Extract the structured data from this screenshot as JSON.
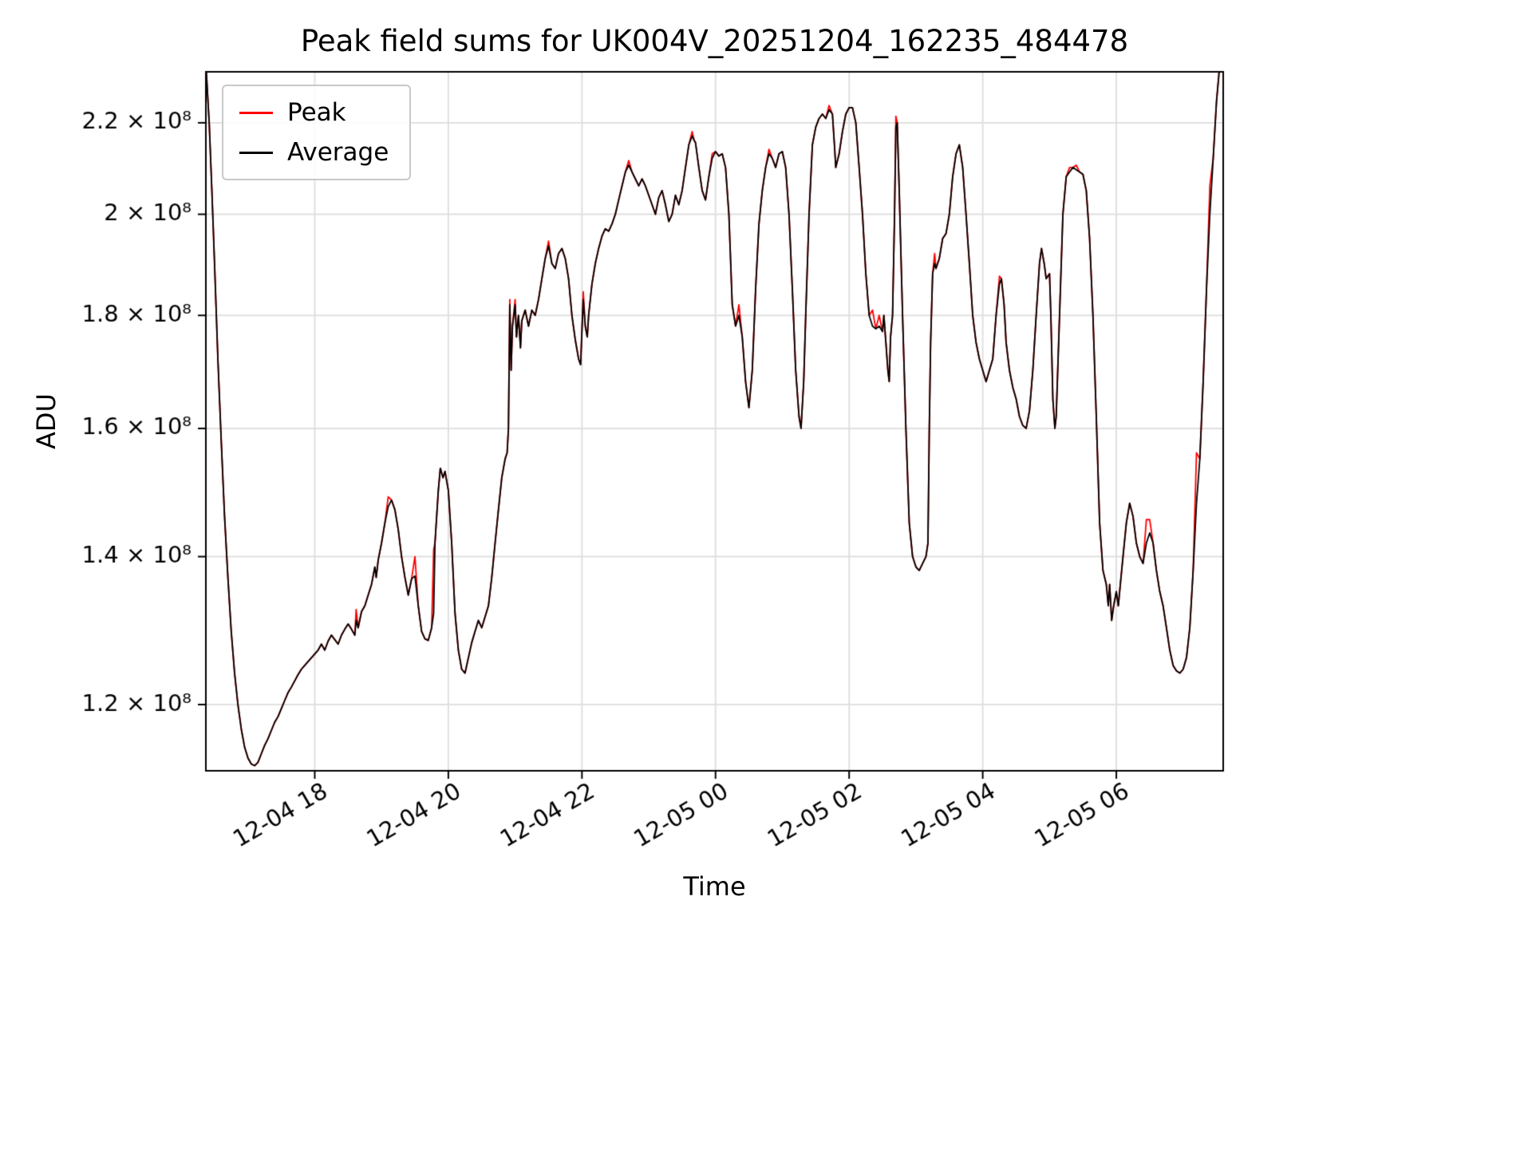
{
  "chart_data": {
    "type": "line",
    "title": "Peak field sums for UK004V_20251204_162235_484478",
    "xlabel": "Time",
    "ylabel": "ADU",
    "yscale": "log",
    "grid": true,
    "grid_color": "#e0e0e0",
    "legend_position": "upper-left",
    "ylim": [
      112000000,
      232000000
    ],
    "xlim_hours": [
      0.37,
      15.6
    ],
    "x_unit": "hours since 2025-12-04 16:00",
    "values_scale": 100000000,
    "xticks": {
      "positions": [
        2,
        4,
        6,
        8,
        10,
        12,
        14
      ],
      "labels": [
        "12-04 18",
        "12-04 20",
        "12-04 22",
        "12-05 00",
        "12-05 02",
        "12-05 04",
        "12-05 06"
      ]
    },
    "yticks": {
      "values": [
        120000000,
        140000000,
        160000000,
        180000000,
        200000000,
        220000000
      ],
      "labels": [
        "1.2 × 10⁸",
        "1.4 × 10⁸",
        "1.6 × 10⁸",
        "1.8 × 10⁸",
        "2 × 10⁸",
        "2.2 × 10⁸"
      ]
    },
    "x": [
      0.37,
      0.42,
      0.46,
      0.5,
      0.55,
      0.6,
      0.65,
      0.7,
      0.75,
      0.8,
      0.85,
      0.9,
      0.95,
      1.0,
      1.05,
      1.1,
      1.15,
      1.2,
      1.25,
      1.3,
      1.35,
      1.4,
      1.45,
      1.5,
      1.55,
      1.6,
      1.65,
      1.7,
      1.75,
      1.8,
      1.85,
      1.9,
      1.95,
      2.0,
      2.05,
      2.1,
      2.15,
      2.2,
      2.25,
      2.3,
      2.35,
      2.4,
      2.45,
      2.5,
      2.55,
      2.6,
      2.62,
      2.65,
      2.7,
      2.75,
      2.8,
      2.85,
      2.9,
      2.92,
      2.95,
      3.0,
      3.05,
      3.1,
      3.15,
      3.2,
      3.25,
      3.3,
      3.35,
      3.4,
      3.45,
      3.5,
      3.55,
      3.6,
      3.65,
      3.7,
      3.75,
      3.78,
      3.8,
      3.85,
      3.88,
      3.92,
      3.95,
      4.0,
      4.05,
      4.1,
      4.15,
      4.2,
      4.25,
      4.3,
      4.35,
      4.4,
      4.45,
      4.5,
      4.55,
      4.6,
      4.65,
      4.7,
      4.75,
      4.8,
      4.85,
      4.88,
      4.9,
      4.92,
      4.94,
      4.96,
      5.0,
      5.02,
      5.05,
      5.08,
      5.1,
      5.15,
      5.2,
      5.25,
      5.3,
      5.35,
      5.4,
      5.45,
      5.5,
      5.55,
      5.6,
      5.65,
      5.7,
      5.75,
      5.8,
      5.85,
      5.9,
      5.95,
      5.98,
      6.02,
      6.05,
      6.08,
      6.1,
      6.15,
      6.2,
      6.25,
      6.3,
      6.35,
      6.4,
      6.45,
      6.5,
      6.55,
      6.6,
      6.65,
      6.7,
      6.75,
      6.8,
      6.85,
      6.9,
      6.95,
      7.0,
      7.05,
      7.1,
      7.15,
      7.2,
      7.25,
      7.3,
      7.35,
      7.4,
      7.45,
      7.5,
      7.55,
      7.6,
      7.65,
      7.68,
      7.7,
      7.75,
      7.8,
      7.85,
      7.9,
      7.95,
      8.0,
      8.05,
      8.1,
      8.15,
      8.2,
      8.25,
      8.3,
      8.35,
      8.4,
      8.45,
      8.5,
      8.55,
      8.6,
      8.65,
      8.7,
      8.75,
      8.8,
      8.85,
      8.9,
      8.95,
      9.0,
      9.05,
      9.1,
      9.15,
      9.2,
      9.25,
      9.28,
      9.32,
      9.35,
      9.4,
      9.45,
      9.5,
      9.55,
      9.6,
      9.65,
      9.7,
      9.75,
      9.78,
      9.8,
      9.85,
      9.9,
      9.95,
      10.0,
      10.05,
      10.1,
      10.15,
      10.2,
      10.25,
      10.3,
      10.35,
      10.4,
      10.45,
      10.5,
      10.52,
      10.55,
      10.58,
      10.6,
      10.62,
      10.65,
      10.68,
      10.7,
      10.72,
      10.75,
      10.8,
      10.85,
      10.9,
      10.95,
      11.0,
      11.05,
      11.1,
      11.15,
      11.18,
      11.2,
      11.22,
      11.25,
      11.28,
      11.3,
      11.35,
      11.4,
      11.45,
      11.5,
      11.55,
      11.6,
      11.65,
      11.7,
      11.75,
      11.8,
      11.85,
      11.9,
      11.95,
      12.0,
      12.05,
      12.1,
      12.15,
      12.2,
      12.25,
      12.28,
      12.32,
      12.35,
      12.4,
      12.45,
      12.5,
      12.55,
      12.6,
      12.65,
      12.7,
      12.75,
      12.8,
      12.85,
      12.88,
      12.92,
      12.95,
      13.0,
      13.02,
      13.05,
      13.08,
      13.1,
      13.15,
      13.2,
      13.25,
      13.3,
      13.35,
      13.4,
      13.45,
      13.5,
      13.55,
      13.6,
      13.65,
      13.7,
      13.75,
      13.8,
      13.85,
      13.88,
      13.9,
      13.93,
      13.96,
      14.0,
      14.03,
      14.06,
      14.1,
      14.15,
      14.2,
      14.25,
      14.3,
      14.35,
      14.4,
      14.45,
      14.5,
      14.55,
      14.6,
      14.65,
      14.7,
      14.75,
      14.8,
      14.85,
      14.9,
      14.95,
      15.0,
      15.05,
      15.1,
      15.15,
      15.2,
      15.25,
      15.3,
      15.35,
      15.4,
      15.45,
      15.5,
      15.55,
      15.6
    ],
    "series": [
      {
        "name": "Peak",
        "color": "#ff0000",
        "values": [
          2.34,
          2.2,
          2.05,
          1.9,
          1.72,
          1.58,
          1.46,
          1.37,
          1.295,
          1.24,
          1.2,
          1.17,
          1.148,
          1.135,
          1.128,
          1.126,
          1.13,
          1.14,
          1.15,
          1.158,
          1.168,
          1.178,
          1.185,
          1.195,
          1.205,
          1.215,
          1.222,
          1.23,
          1.238,
          1.245,
          1.25,
          1.255,
          1.26,
          1.265,
          1.27,
          1.278,
          1.27,
          1.282,
          1.29,
          1.284,
          1.278,
          1.29,
          1.298,
          1.305,
          1.298,
          1.29,
          1.325,
          1.3,
          1.322,
          1.33,
          1.345,
          1.36,
          1.385,
          1.37,
          1.395,
          1.42,
          1.45,
          1.49,
          1.485,
          1.47,
          1.44,
          1.4,
          1.37,
          1.345,
          1.368,
          1.4,
          1.33,
          1.295,
          1.285,
          1.283,
          1.3,
          1.41,
          1.42,
          1.5,
          1.535,
          1.52,
          1.53,
          1.5,
          1.42,
          1.32,
          1.27,
          1.245,
          1.24,
          1.26,
          1.28,
          1.295,
          1.31,
          1.3,
          1.315,
          1.33,
          1.37,
          1.42,
          1.47,
          1.52,
          1.55,
          1.56,
          1.6,
          1.83,
          1.7,
          1.78,
          1.83,
          1.76,
          1.8,
          1.74,
          1.79,
          1.81,
          1.78,
          1.81,
          1.8,
          1.83,
          1.87,
          1.91,
          1.945,
          1.9,
          1.89,
          1.92,
          1.93,
          1.91,
          1.87,
          1.8,
          1.755,
          1.72,
          1.71,
          1.845,
          1.78,
          1.76,
          1.8,
          1.86,
          1.9,
          1.93,
          1.955,
          1.97,
          1.965,
          1.98,
          2.0,
          2.03,
          2.06,
          2.09,
          2.115,
          2.09,
          2.075,
          2.06,
          2.075,
          2.06,
          2.04,
          2.02,
          2.0,
          2.035,
          2.05,
          2.02,
          1.985,
          2.0,
          2.04,
          2.02,
          2.05,
          2.1,
          2.15,
          2.18,
          2.16,
          2.155,
          2.1,
          2.05,
          2.03,
          2.08,
          2.13,
          2.135,
          2.125,
          2.13,
          2.1,
          2.0,
          1.82,
          1.78,
          1.82,
          1.76,
          1.68,
          1.635,
          1.7,
          1.85,
          1.98,
          2.05,
          2.1,
          2.14,
          2.12,
          2.1,
          2.13,
          2.135,
          2.1,
          2.0,
          1.85,
          1.7,
          1.62,
          1.6,
          1.68,
          1.8,
          2.0,
          2.15,
          2.19,
          2.21,
          2.22,
          2.21,
          2.24,
          2.22,
          2.15,
          2.1,
          2.13,
          2.18,
          2.22,
          2.235,
          2.235,
          2.2,
          2.1,
          2.0,
          1.88,
          1.8,
          1.81,
          1.775,
          1.8,
          1.77,
          1.8,
          1.75,
          1.7,
          1.68,
          1.76,
          1.8,
          2.0,
          2.215,
          2.2,
          2.05,
          1.8,
          1.6,
          1.45,
          1.4,
          1.385,
          1.38,
          1.39,
          1.4,
          1.42,
          1.6,
          1.75,
          1.88,
          1.92,
          1.89,
          1.91,
          1.95,
          1.96,
          2.0,
          2.08,
          2.13,
          2.15,
          2.1,
          2.0,
          1.9,
          1.8,
          1.75,
          1.72,
          1.7,
          1.68,
          1.7,
          1.72,
          1.8,
          1.875,
          1.87,
          1.82,
          1.75,
          1.7,
          1.67,
          1.65,
          1.62,
          1.605,
          1.6,
          1.63,
          1.7,
          1.8,
          1.9,
          1.93,
          1.9,
          1.87,
          1.88,
          1.8,
          1.65,
          1.6,
          1.62,
          1.8,
          2.0,
          2.08,
          2.1,
          2.1,
          2.105,
          2.09,
          2.085,
          2.05,
          1.95,
          1.8,
          1.62,
          1.45,
          1.38,
          1.36,
          1.33,
          1.36,
          1.31,
          1.33,
          1.35,
          1.33,
          1.36,
          1.4,
          1.45,
          1.48,
          1.46,
          1.42,
          1.4,
          1.39,
          1.455,
          1.455,
          1.42,
          1.38,
          1.35,
          1.33,
          1.3,
          1.27,
          1.25,
          1.243,
          1.24,
          1.245,
          1.26,
          1.3,
          1.38,
          1.56,
          1.55,
          1.68,
          1.85,
          2.06,
          2.12,
          2.25,
          2.34,
          2.36
        ]
      },
      {
        "name": "Average",
        "color": "#000000",
        "values": [
          2.34,
          2.2,
          2.05,
          1.9,
          1.72,
          1.58,
          1.46,
          1.37,
          1.295,
          1.24,
          1.2,
          1.17,
          1.148,
          1.135,
          1.128,
          1.126,
          1.13,
          1.14,
          1.15,
          1.158,
          1.168,
          1.178,
          1.185,
          1.195,
          1.205,
          1.215,
          1.222,
          1.23,
          1.238,
          1.245,
          1.25,
          1.255,
          1.26,
          1.265,
          1.27,
          1.278,
          1.27,
          1.282,
          1.29,
          1.284,
          1.278,
          1.29,
          1.298,
          1.305,
          1.298,
          1.29,
          1.31,
          1.3,
          1.322,
          1.33,
          1.345,
          1.36,
          1.385,
          1.37,
          1.395,
          1.42,
          1.45,
          1.475,
          1.485,
          1.47,
          1.44,
          1.4,
          1.37,
          1.345,
          1.368,
          1.372,
          1.33,
          1.295,
          1.285,
          1.283,
          1.3,
          1.32,
          1.42,
          1.5,
          1.535,
          1.52,
          1.53,
          1.5,
          1.42,
          1.32,
          1.27,
          1.245,
          1.24,
          1.26,
          1.28,
          1.295,
          1.31,
          1.3,
          1.315,
          1.33,
          1.37,
          1.42,
          1.47,
          1.52,
          1.55,
          1.56,
          1.6,
          1.82,
          1.7,
          1.78,
          1.82,
          1.76,
          1.8,
          1.74,
          1.79,
          1.81,
          1.78,
          1.81,
          1.8,
          1.83,
          1.87,
          1.91,
          1.935,
          1.9,
          1.89,
          1.92,
          1.93,
          1.91,
          1.87,
          1.8,
          1.755,
          1.72,
          1.71,
          1.83,
          1.78,
          1.76,
          1.8,
          1.86,
          1.9,
          1.93,
          1.955,
          1.97,
          1.965,
          1.98,
          2.0,
          2.03,
          2.06,
          2.09,
          2.105,
          2.09,
          2.075,
          2.06,
          2.075,
          2.06,
          2.04,
          2.02,
          2.0,
          2.035,
          2.05,
          2.02,
          1.985,
          2.0,
          2.04,
          2.02,
          2.05,
          2.1,
          2.15,
          2.17,
          2.16,
          2.155,
          2.1,
          2.05,
          2.03,
          2.08,
          2.12,
          2.135,
          2.125,
          2.13,
          2.1,
          2.0,
          1.82,
          1.78,
          1.8,
          1.76,
          1.68,
          1.635,
          1.7,
          1.85,
          1.98,
          2.05,
          2.1,
          2.13,
          2.12,
          2.1,
          2.13,
          2.135,
          2.1,
          2.0,
          1.85,
          1.7,
          1.62,
          1.6,
          1.68,
          1.8,
          2.0,
          2.15,
          2.19,
          2.21,
          2.22,
          2.21,
          2.23,
          2.22,
          2.15,
          2.1,
          2.13,
          2.18,
          2.22,
          2.235,
          2.235,
          2.2,
          2.1,
          2.0,
          1.88,
          1.8,
          1.78,
          1.775,
          1.78,
          1.77,
          1.8,
          1.75,
          1.7,
          1.68,
          1.76,
          1.8,
          2.0,
          2.19,
          2.2,
          2.05,
          1.8,
          1.6,
          1.45,
          1.4,
          1.385,
          1.38,
          1.39,
          1.4,
          1.42,
          1.6,
          1.75,
          1.88,
          1.9,
          1.89,
          1.91,
          1.95,
          1.96,
          2.0,
          2.08,
          2.13,
          2.15,
          2.1,
          2.0,
          1.9,
          1.8,
          1.75,
          1.72,
          1.7,
          1.68,
          1.7,
          1.72,
          1.8,
          1.86,
          1.87,
          1.82,
          1.75,
          1.7,
          1.67,
          1.65,
          1.62,
          1.605,
          1.6,
          1.63,
          1.7,
          1.8,
          1.9,
          1.93,
          1.9,
          1.87,
          1.88,
          1.8,
          1.65,
          1.6,
          1.62,
          1.8,
          2.0,
          2.08,
          2.09,
          2.1,
          2.095,
          2.09,
          2.085,
          2.05,
          1.95,
          1.8,
          1.62,
          1.45,
          1.38,
          1.36,
          1.33,
          1.36,
          1.31,
          1.33,
          1.35,
          1.33,
          1.36,
          1.4,
          1.45,
          1.48,
          1.46,
          1.42,
          1.4,
          1.39,
          1.42,
          1.435,
          1.42,
          1.38,
          1.35,
          1.33,
          1.3,
          1.27,
          1.25,
          1.243,
          1.24,
          1.245,
          1.26,
          1.3,
          1.38,
          1.48,
          1.55,
          1.68,
          1.85,
          2.0,
          2.12,
          2.25,
          2.34,
          2.36
        ]
      }
    ],
    "legend": {
      "entries": [
        {
          "label": "Peak",
          "color": "#ff0000"
        },
        {
          "label": "Average",
          "color": "#000000"
        }
      ]
    }
  }
}
